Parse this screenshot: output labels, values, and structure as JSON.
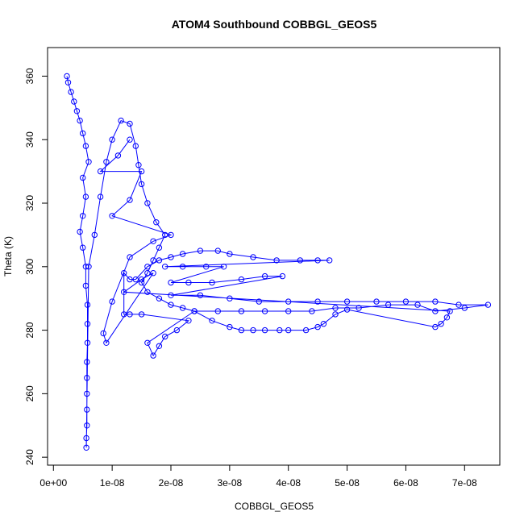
{
  "chart_data": {
    "type": "scatter",
    "title": "ATOM4 Southbound COBBGL_GEOS5",
    "xlabel": "COBBGL_GEOS5",
    "ylabel": "Theta (K)",
    "xlim": [
      -1e-09,
      7.6e-08
    ],
    "ylim": [
      237.5,
      369
    ],
    "grid": false,
    "x_ticks": [
      0,
      1e-08,
      2e-08,
      3e-08,
      4e-08,
      5e-08,
      6e-08,
      7e-08
    ],
    "x_tick_labels": [
      "0e+00",
      "1e-08",
      "2e-08",
      "3e-08",
      "4e-08",
      "5e-08",
      "6e-08",
      "7e-08"
    ],
    "y_ticks": [
      240,
      260,
      280,
      300,
      320,
      340,
      360
    ],
    "y_tick_labels": [
      "240",
      "260",
      "280",
      "300",
      "320",
      "340",
      "360"
    ],
    "series": [
      {
        "color": "#0000ff",
        "marker": "open-circle",
        "line": true,
        "points": [
          [
            2.3e-09,
            360
          ],
          [
            2.5e-09,
            358
          ],
          [
            3e-09,
            355
          ],
          [
            3.5e-09,
            352
          ],
          [
            4e-09,
            349
          ],
          [
            4.5e-09,
            346
          ],
          [
            5e-09,
            342
          ],
          [
            5.5e-09,
            338
          ],
          [
            6e-09,
            333
          ],
          [
            5e-09,
            328
          ],
          [
            5.5e-09,
            322
          ],
          [
            5e-09,
            316
          ],
          [
            4.5e-09,
            311
          ],
          [
            5e-09,
            306
          ],
          [
            5.5e-09,
            300
          ],
          [
            5.5e-09,
            294
          ],
          [
            5.8e-09,
            288
          ],
          [
            5.8e-09,
            282
          ],
          [
            5.8e-09,
            276
          ],
          [
            5.7e-09,
            270
          ],
          [
            5.7e-09,
            265
          ],
          [
            5.7e-09,
            260
          ],
          [
            5.7e-09,
            255
          ],
          [
            5.7e-09,
            250
          ],
          [
            5.6e-09,
            246
          ],
          [
            5.6e-09,
            243
          ],
          [
            6e-09,
            300
          ],
          [
            7e-09,
            310
          ],
          [
            8e-09,
            322
          ],
          [
            9e-09,
            333
          ],
          [
            1e-08,
            340
          ],
          [
            1.15e-08,
            346
          ],
          [
            1.3e-08,
            345
          ],
          [
            1.4e-08,
            338
          ],
          [
            1.45e-08,
            332
          ],
          [
            1.5e-08,
            326
          ],
          [
            1.6e-08,
            320
          ],
          [
            1.75e-08,
            314
          ],
          [
            1.9e-08,
            310
          ],
          [
            1.8e-08,
            306
          ],
          [
            1.7e-08,
            302
          ],
          [
            1.6e-08,
            298
          ],
          [
            1.5e-08,
            295
          ],
          [
            1.6e-08,
            292
          ],
          [
            1.8e-08,
            290
          ],
          [
            2e-08,
            288
          ],
          [
            2.2e-08,
            287
          ],
          [
            2.4e-08,
            286
          ],
          [
            1.6e-08,
            276
          ],
          [
            1.7e-08,
            272
          ],
          [
            1.8e-08,
            275
          ],
          [
            1.9e-08,
            278
          ],
          [
            2.1e-08,
            280
          ],
          [
            2.3e-08,
            283
          ],
          [
            1.5e-08,
            285
          ],
          [
            1.3e-08,
            285
          ],
          [
            1.2e-08,
            285
          ],
          [
            1.2e-08,
            298
          ],
          [
            1.3e-08,
            296
          ],
          [
            1.4e-08,
            296
          ],
          [
            1.6e-08,
            300
          ],
          [
            1.8e-08,
            302
          ],
          [
            2e-08,
            303
          ],
          [
            2.2e-08,
            304
          ],
          [
            2.5e-08,
            305
          ],
          [
            2.8e-08,
            305
          ],
          [
            3e-08,
            304
          ],
          [
            3.4e-08,
            303
          ],
          [
            3.8e-08,
            302
          ],
          [
            4.2e-08,
            302
          ],
          [
            4.5e-08,
            302
          ],
          [
            4.7e-08,
            302
          ],
          [
            1.9e-08,
            300
          ],
          [
            2.2e-08,
            300
          ],
          [
            2.6e-08,
            300
          ],
          [
            2.9e-08,
            300
          ],
          [
            2e-08,
            295
          ],
          [
            2.3e-08,
            295
          ],
          [
            2.7e-08,
            295
          ],
          [
            3.2e-08,
            296
          ],
          [
            3.6e-08,
            297
          ],
          [
            3.9e-08,
            297
          ],
          [
            2e-08,
            291
          ],
          [
            2.5e-08,
            291
          ],
          [
            3e-08,
            290
          ],
          [
            3.5e-08,
            289
          ],
          [
            4e-08,
            289
          ],
          [
            4.5e-08,
            289
          ],
          [
            5e-08,
            289
          ],
          [
            5.5e-08,
            289
          ],
          [
            6e-08,
            289
          ],
          [
            6.5e-08,
            289
          ],
          [
            6.9e-08,
            288
          ],
          [
            7.4e-08,
            288
          ],
          [
            7e-08,
            287
          ],
          [
            6.5e-08,
            286
          ],
          [
            6.2e-08,
            288
          ],
          [
            5.7e-08,
            288
          ],
          [
            5.2e-08,
            287
          ],
          [
            4.8e-08,
            287
          ],
          [
            4.4e-08,
            286
          ],
          [
            4e-08,
            286
          ],
          [
            3.6e-08,
            286
          ],
          [
            3.2e-08,
            286
          ],
          [
            2.8e-08,
            286
          ],
          [
            2.4e-08,
            286
          ],
          [
            2.7e-08,
            283
          ],
          [
            3e-08,
            281
          ],
          [
            3.2e-08,
            280
          ],
          [
            3.4e-08,
            280
          ],
          [
            3.6e-08,
            280
          ],
          [
            3.85e-08,
            280
          ],
          [
            4e-08,
            280
          ],
          [
            4.3e-08,
            280
          ],
          [
            4.5e-08,
            281
          ],
          [
            4.6e-08,
            282
          ],
          [
            4.8e-08,
            285
          ],
          [
            5e-08,
            286.5
          ],
          [
            6.5e-08,
            281
          ],
          [
            6.6e-08,
            282
          ],
          [
            6.7e-08,
            284
          ],
          [
            6.75e-08,
            286
          ],
          [
            1.2e-08,
            292
          ],
          [
            1.5e-08,
            296
          ],
          [
            1.7e-08,
            298
          ],
          [
            9e-09,
            276
          ],
          [
            8.5e-09,
            279
          ],
          [
            1e-08,
            289
          ],
          [
            1.3e-08,
            303
          ],
          [
            1.7e-08,
            308
          ],
          [
            2e-08,
            310
          ],
          [
            1e-08,
            316
          ],
          [
            1.3e-08,
            321
          ],
          [
            1.5e-08,
            330
          ],
          [
            8e-09,
            330
          ],
          [
            1.1e-08,
            335
          ],
          [
            1.3e-08,
            340
          ]
        ]
      }
    ]
  }
}
